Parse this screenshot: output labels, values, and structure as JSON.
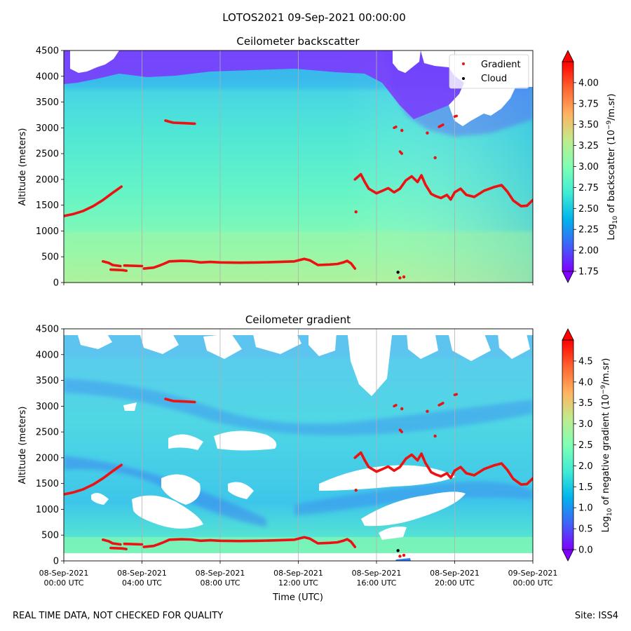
{
  "figure": {
    "title": "LOTOS2021 09-Sep-2021 00:00:00",
    "footer_left": "REAL TIME DATA, NOT CHECKED FOR QUALITY",
    "footer_right": "Site: ISS4"
  },
  "colors": {
    "gradient_marker": "#ee1111",
    "cloud_marker": "#000000",
    "grid": "#b0b0b0",
    "rainbow": [
      "#8000ff",
      "#4062fa",
      "#00b5eb",
      "#40ecd4",
      "#80ffb4",
      "#c0eb8d",
      "#ffb360",
      "#ff6230",
      "#ff0000"
    ]
  },
  "chart_data": [
    {
      "type": "heatmap",
      "title": "Ceilometer backscatter",
      "xlabel": "",
      "ylabel": "Altitude (meters)",
      "x_unit": "hours since 08-Sep-2021 00:00 UTC",
      "xlim": [
        0,
        24
      ],
      "ylim": [
        0,
        4500
      ],
      "yticks": [
        0,
        500,
        1000,
        1500,
        2000,
        2500,
        3000,
        3500,
        4000,
        4500
      ],
      "xticks": [
        0,
        4,
        8,
        12,
        16,
        20,
        24
      ],
      "xtick_labels": [],
      "grid": "vertical",
      "legend": {
        "location": "top-right",
        "entries": [
          "Gradient",
          "Cloud"
        ]
      },
      "colorbar": {
        "label": "Log10 of backscatter (10^-9/m.sr)",
        "label_main": "Log",
        "label_sub": "10",
        "label_mid": " of backscatter (10",
        "label_sup": "−9",
        "label_end": "/m.sr)",
        "range": [
          1.75,
          4.25
        ],
        "ticks": [
          "1.75",
          "2.00",
          "2.25",
          "2.50",
          "2.75",
          "3.00",
          "3.25",
          "3.50",
          "3.75",
          "4.00"
        ],
        "extend": "both"
      }
    },
    {
      "type": "heatmap",
      "title": "Ceilometer gradient",
      "xlabel": "Time (UTC)",
      "ylabel": "Altitude (meters)",
      "x_unit": "hours since 08-Sep-2021 00:00 UTC",
      "xlim": [
        0,
        24
      ],
      "ylim": [
        0,
        4500
      ],
      "yticks": [
        0,
        500,
        1000,
        1500,
        2000,
        2500,
        3000,
        3500,
        4000,
        4500
      ],
      "xticks": [
        0,
        4,
        8,
        12,
        16,
        20,
        24
      ],
      "xtick_labels": [
        {
          "date": "08-Sep-2021",
          "time": "00:00 UTC"
        },
        {
          "date": "08-Sep-2021",
          "time": "04:00 UTC"
        },
        {
          "date": "08-Sep-2021",
          "time": "08:00 UTC"
        },
        {
          "date": "08-Sep-2021",
          "time": "12:00 UTC"
        },
        {
          "date": "08-Sep-2021",
          "time": "16:00 UTC"
        },
        {
          "date": "08-Sep-2021",
          "time": "20:00 UTC"
        },
        {
          "date": "09-Sep-2021",
          "time": "00:00 UTC"
        }
      ],
      "grid": "vertical",
      "colorbar": {
        "label": "Log10 of negative gradient (10^-9/m.sr)",
        "label_main": "Log",
        "label_sub": "10",
        "label_mid": " of negative gradient (10",
        "label_sup": "−9",
        "label_end": "/m.sr)",
        "range": [
          0,
          5
        ],
        "ticks": [
          "0.0",
          "0.5",
          "1.0",
          "1.5",
          "2.0",
          "2.5",
          "3.0",
          "3.5",
          "4.0",
          "4.5"
        ],
        "extend": "both"
      }
    }
  ],
  "series": {
    "gradient_layers": [
      [
        [
          0.0,
          1290
        ],
        [
          0.5,
          1330
        ],
        [
          1.0,
          1390
        ],
        [
          1.5,
          1480
        ],
        [
          2.0,
          1600
        ],
        [
          2.5,
          1740
        ],
        [
          2.95,
          1860
        ]
      ],
      [
        [
          2.0,
          410
        ],
        [
          2.3,
          380
        ],
        [
          2.5,
          340
        ],
        [
          2.9,
          320
        ]
      ],
      [
        [
          2.4,
          250
        ],
        [
          3.0,
          240
        ],
        [
          3.2,
          230
        ]
      ],
      [
        [
          3.1,
          330
        ],
        [
          4.0,
          320
        ]
      ],
      [
        [
          4.1,
          270
        ],
        [
          4.6,
          290
        ],
        [
          4.9,
          330
        ],
        [
          5.1,
          360
        ],
        [
          5.4,
          410
        ],
        [
          6.0,
          420
        ],
        [
          6.5,
          415
        ],
        [
          7.0,
          390
        ],
        [
          7.5,
          400
        ],
        [
          8.0,
          390
        ],
        [
          9.0,
          385
        ],
        [
          10.0,
          390
        ],
        [
          11.0,
          400
        ],
        [
          11.8,
          410
        ],
        [
          12.3,
          460
        ],
        [
          12.6,
          430
        ],
        [
          13.0,
          340
        ],
        [
          13.6,
          350
        ],
        [
          14.0,
          360
        ],
        [
          14.3,
          390
        ],
        [
          14.5,
          420
        ],
        [
          14.7,
          370
        ],
        [
          14.9,
          270
        ]
      ],
      [
        [
          5.2,
          3140
        ],
        [
          5.6,
          3100
        ],
        [
          6.2,
          3090
        ],
        [
          6.7,
          3080
        ]
      ],
      [
        [
          14.9,
          2000
        ],
        [
          15.2,
          2100
        ],
        [
          15.4,
          1950
        ],
        [
          15.6,
          1820
        ],
        [
          16.0,
          1730
        ],
        [
          16.3,
          1780
        ],
        [
          16.6,
          1830
        ],
        [
          16.9,
          1750
        ],
        [
          17.2,
          1820
        ],
        [
          17.5,
          1980
        ],
        [
          17.8,
          2060
        ],
        [
          18.1,
          1950
        ],
        [
          18.3,
          2080
        ],
        [
          18.5,
          1900
        ],
        [
          18.8,
          1720
        ],
        [
          19.0,
          1680
        ],
        [
          19.3,
          1640
        ],
        [
          19.6,
          1700
        ],
        [
          19.8,
          1610
        ],
        [
          20.0,
          1750
        ],
        [
          20.3,
          1820
        ],
        [
          20.6,
          1700
        ],
        [
          21.0,
          1660
        ],
        [
          21.5,
          1780
        ],
        [
          22.0,
          1850
        ],
        [
          22.4,
          1890
        ],
        [
          22.7,
          1760
        ],
        [
          23.0,
          1590
        ],
        [
          23.4,
          1480
        ],
        [
          23.7,
          1490
        ],
        [
          24.0,
          1600
        ]
      ],
      [
        [
          16.9,
          3000
        ],
        [
          17.0,
          3020
        ]
      ],
      [
        [
          17.2,
          2540
        ],
        [
          17.3,
          2500
        ]
      ],
      [
        [
          19.2,
          3020
        ],
        [
          19.4,
          3060
        ]
      ],
      [
        [
          20.0,
          3220
        ],
        [
          20.1,
          3230
        ]
      ]
    ],
    "gradient_points": [
      [
        14.95,
        1370
      ],
      [
        17.3,
        2950
      ],
      [
        18.6,
        2900
      ],
      [
        19.0,
        2420
      ],
      [
        17.4,
        110
      ],
      [
        17.2,
        90
      ]
    ],
    "cloud_points": [
      [
        17.1,
        200
      ]
    ]
  }
}
